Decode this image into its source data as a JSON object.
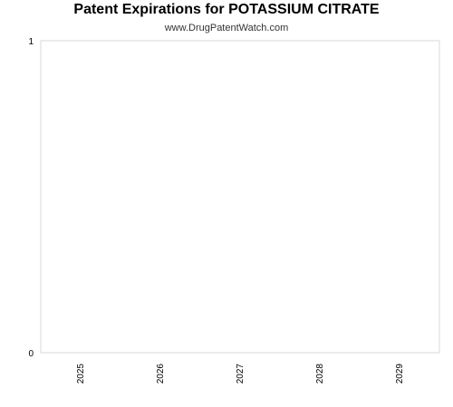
{
  "chart_data": {
    "type": "bar",
    "title": "Patent Expirations for POTASSIUM CITRATE",
    "subtitle": "www.DrugPatentWatch.com",
    "categories": [
      "2025",
      "2026",
      "2027",
      "2028",
      "2029"
    ],
    "values": [
      0,
      0,
      0,
      0,
      0
    ],
    "ylim": [
      0,
      1
    ],
    "y_ticks": [
      "0",
      "1"
    ],
    "grid": false,
    "colors": {
      "axis": "#d9d9d9",
      "text": "#000000"
    }
  }
}
